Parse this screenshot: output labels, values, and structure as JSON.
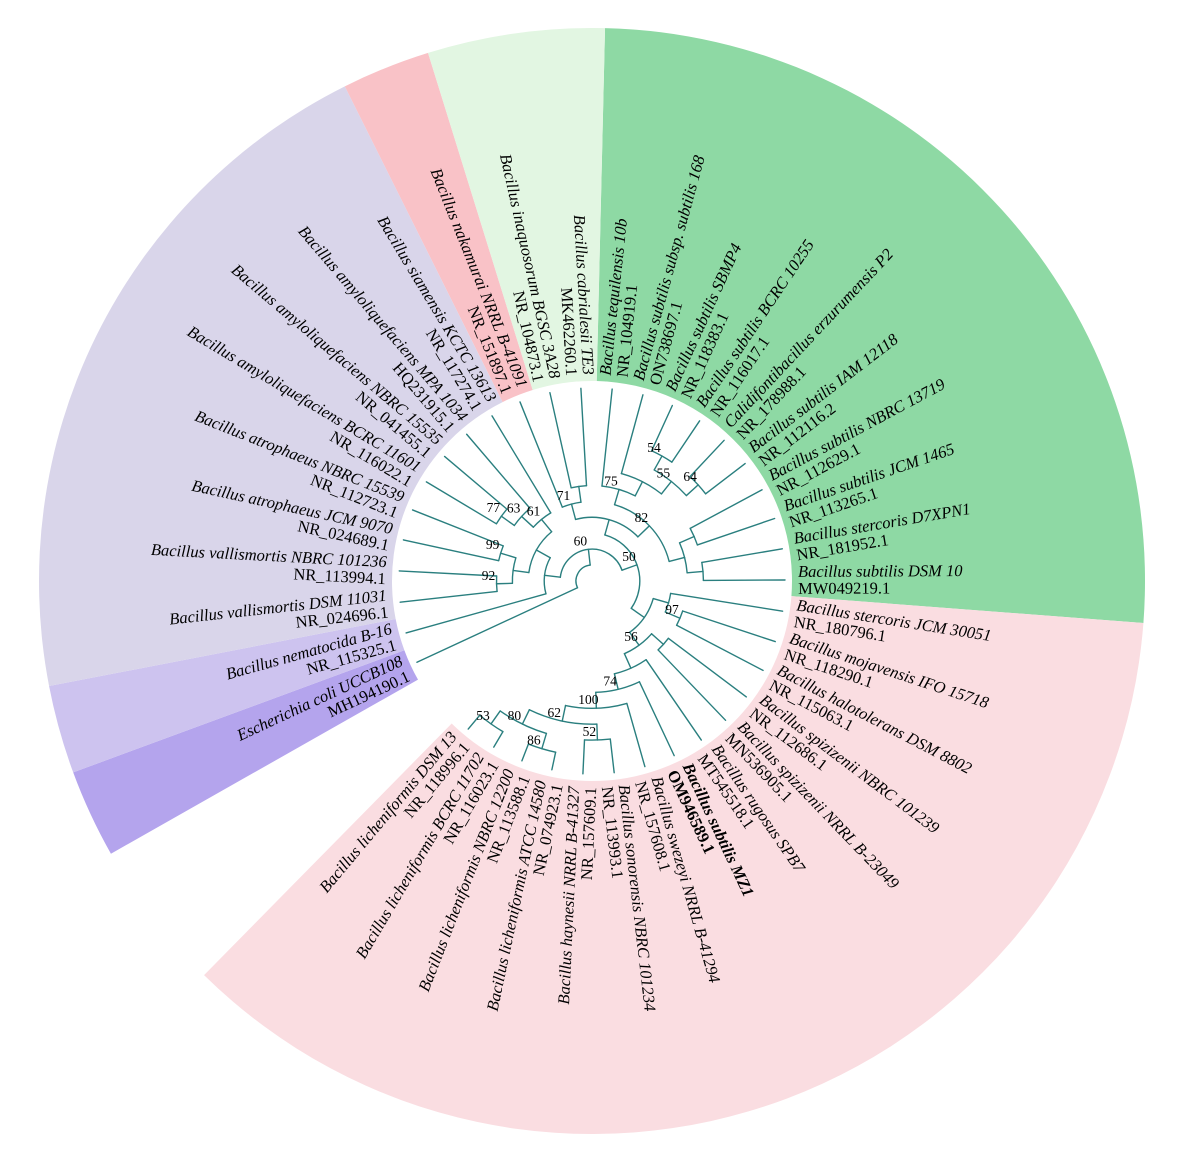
{
  "figure": {
    "type": "circular-phylogenetic-tree"
  },
  "style": {
    "branch_color": "#2a7f7f",
    "background_color": "#ffffff",
    "text_color": "#000000"
  },
  "taxa": [
    {
      "name": "Bacillus tequilensis 10b",
      "accession": "NR_104919.1"
    },
    {
      "name": "Bacillus subtilis subsp. subtilis 168",
      "accession": "ON738697.1"
    },
    {
      "name": "Bacillus subtilis SBMP4",
      "accession": "NR_118383.1"
    },
    {
      "name": "Bacillus subtilis BCRC 10255",
      "accession": "NR_116017.1"
    },
    {
      "name": "Calidifontibacillus erzurumensis P2",
      "accession": "NR_178988.1"
    },
    {
      "name": "Bacillus subtilis IAM 12118",
      "accession": "NR_112116.2"
    },
    {
      "name": "Bacillus subtilis NBRC 13719",
      "accession": "NR_112629.1"
    },
    {
      "name": "Bacillus subtilis JCM 1465",
      "accession": "NR_113265.1"
    },
    {
      "name": "Bacillus stercoris D7XPN1",
      "accession": "NR_181952.1"
    },
    {
      "name": "Bacillus subtilis DSM 10",
      "accession": "MW049219.1"
    },
    {
      "name": "Bacillus stercoris JCM 30051",
      "accession": "NR_180796.1"
    },
    {
      "name": "Bacillus mojavensis IFO 15718",
      "accession": "NR_118290.1"
    },
    {
      "name": "Bacillus halotolerans DSM 8802",
      "accession": "NR_115063.1"
    },
    {
      "name": "Bacillus spizizenii NBRC 101239",
      "accession": "NR_112686.1"
    },
    {
      "name": "Bacillus spizizenii NRRL B-23049",
      "accession": "MN536905.1"
    },
    {
      "name": "Bacillus rugosus SPB7",
      "accession": "MT545518.1"
    },
    {
      "name": "Bacillus subtilis MZ1",
      "accession": "OM946589.1",
      "bold": true
    },
    {
      "name": "Bacillus swezeyi NRRL B-41294",
      "accession": "NR_157608.1"
    },
    {
      "name": "Bacillus sonorensis NBRC 101234",
      "accession": "NR_113993.1"
    },
    {
      "name": "Bacillus haynesii NRRL B-41327",
      "accession": "NR_157609.1"
    },
    {
      "name": "Bacillus licheniformis ATCC 14580",
      "accession": "NR_074923.1"
    },
    {
      "name": "Bacillus licheniformis NBRC 12200",
      "accession": "NR_113588.1"
    },
    {
      "name": "Bacillus licheniformis BCRC 11702",
      "accession": "NR_116023.1"
    },
    {
      "name": "Bacillus licheniformis DSM 13",
      "accession": "NR_118996.1"
    },
    {
      "name": "Escherichia coli UCCB108",
      "accession": "MH194190.1"
    },
    {
      "name": "Bacillus nematocida B-16",
      "accession": "NR_115325.1"
    },
    {
      "name": "Bacillus vallismortis DSM 11031",
      "accession": "NR_024696.1"
    },
    {
      "name": "Bacillus vallismortis NBRC 101236",
      "accession": "NR_113994.1"
    },
    {
      "name": "Bacillus atrophaeus JCM 9070",
      "accession": "NR_024689.1"
    },
    {
      "name": "Bacillus atrophaeus NBRC 15539",
      "accession": "NR_112723.1"
    },
    {
      "name": "Bacillus amyloliquefaciens BCRC 11601",
      "accession": "NR_116022.1"
    },
    {
      "name": "Bacillus amyloliquefaciens NBRC 15535",
      "accession": "NR_041455.1"
    },
    {
      "name": "Bacillus amyloliquefaciens MPA 1034",
      "accession": "HQ231915.1"
    },
    {
      "name": "Bacillus siamensis KCTC 13613",
      "accession": "NR_117274.1"
    },
    {
      "name": "Bacillus nakamurai NRRL B-41091",
      "accession": "NR_151897.1"
    },
    {
      "name": "Bacillus inaquosorum BGSC 3A28",
      "accession": "NR_104873.1"
    },
    {
      "name": "Bacillus cabrialesii TE3",
      "accession": "MK462260.1"
    }
  ],
  "sectors": [
    {
      "name": "subtilis-clade",
      "color": "#8ed9a4",
      "from": 0,
      "to": 9
    },
    {
      "name": "spizizenii-licheniformis-clade",
      "color": "#fadde1",
      "from": 10,
      "to": 23
    },
    {
      "name": "escherichia-coli-outgroup",
      "color": "#b4a4ed",
      "from": 24,
      "to": 24
    },
    {
      "name": "nematocida-branch",
      "color": "#cdc3ef",
      "from": 25,
      "to": 25
    },
    {
      "name": "amyloliquefaciens-atrophaeus-clade",
      "color": "#d9d5ea",
      "from": 26,
      "to": 33
    },
    {
      "name": "nakamurai-branch",
      "color": "#f9c2c7",
      "from": 34,
      "to": 34
    },
    {
      "name": "inaquosorum-cabrialesii-clade",
      "color": "#e2f6e2",
      "from": 35,
      "to": 36
    }
  ],
  "bootstrap_values": [
    71,
    54,
    55,
    64,
    82,
    75,
    50,
    60,
    99,
    92,
    77,
    63,
    61,
    97,
    56,
    74,
    100,
    62,
    52,
    80,
    86,
    53
  ],
  "tree": {
    "c": [
      24,
      {
        "s": 60,
        "c": [
          {
            "c": [
              25,
              {
                "c": [
                  {
                    "c": [
                      {
                        "s": 92,
                        "c": [
                          26,
                          27
                        ]
                      },
                      {
                        "s": 99,
                        "c": [
                          28,
                          29
                        ]
                      }
                    ]
                  },
                  {
                    "s": 61,
                    "c": [
                      {
                        "s": 63,
                        "c": [
                          {
                            "s": 77,
                            "c": [
                              30,
                              31
                            ]
                          },
                          32
                        ]
                      },
                      33
                    ]
                  }
                ]
              }
            ]
          },
          {
            "s": 50,
            "c": [
              {
                "c": [
                  {
                    "s": 71,
                    "c": [
                      34,
                      {
                        "c": [
                          35,
                          36
                        ]
                      }
                    ]
                  },
                  {
                    "s": 82,
                    "c": [
                      {
                        "s": 75,
                        "c": [
                          0,
                          {
                            "c": [
                              1,
                              {
                                "s": 55,
                                "c": [
                                  {
                                    "s": 54,
                                    "c": [
                                      2,
                                      3
                                    ]
                                  },
                                  {
                                    "s": 64,
                                    "c": [
                                      4,
                                      5
                                    ]
                                  }
                                ]
                              }
                            ]
                          }
                        ]
                      },
                      {
                        "c": [
                          {
                            "c": [
                              6,
                              7
                            ]
                          },
                          {
                            "c": [
                              8,
                              9
                            ]
                          }
                        ]
                      }
                    ]
                  }
                ]
              },
              {
                "c": [
                  {
                    "c": [
                      10,
                      {
                        "s": 97,
                        "c": [
                          11,
                          12
                        ]
                      }
                    ]
                  },
                  {
                    "s": 56,
                    "c": [
                      {
                        "c": [
                          13,
                          14
                        ]
                      },
                      {
                        "c": [
                          15,
                          {
                            "s": 74,
                            "c": [
                              16,
                              {
                                "s": 100,
                                "c": [
                                  17,
                                  {
                                    "s": 62,
                                    "c": [
                                      {
                                        "s": 52,
                                        "c": [
                                          18,
                                          19
                                        ]
                                      },
                                      {
                                        "s": 80,
                                        "c": [
                                          {
                                            "s": 86,
                                            "c": [
                                              20,
                                              21
                                            ]
                                          },
                                          {
                                            "s": 53,
                                            "c": [
                                              22,
                                              23
                                            ]
                                          }
                                        ]
                                      }
                                    ]
                                  }
                                ]
                              }
                            ]
                          }
                        ]
                      }
                    ]
                  }
                ]
              }
            ]
          }
        ]
      }
    ]
  }
}
